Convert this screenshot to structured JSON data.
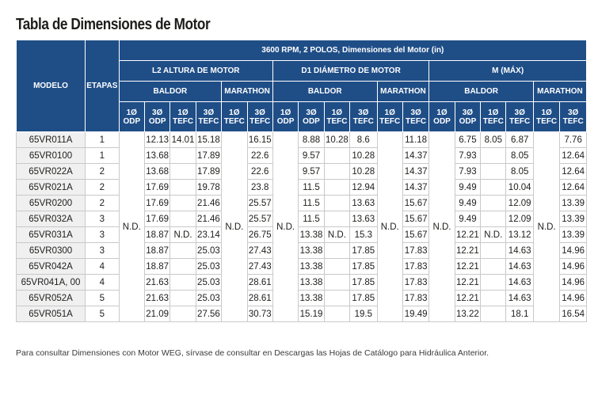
{
  "title": "Tabla de Dimensiones de Motor",
  "header": {
    "model": "MODELO",
    "stages": "ETAPAS",
    "spec": "3600 RPM, 2 POLOS, Dimensiones del Motor (in)",
    "groups": [
      "L2 ALTURA DE MOTOR",
      "D1 DIÁMETRO DE MOTOR",
      "M (MÁX)"
    ],
    "brands": [
      "BALDOR",
      "MARATHON"
    ],
    "sub": [
      "1Ø ODP",
      "3Ø ODP",
      "1Ø TEFC",
      "3Ø TEFC",
      "1Ø TEFC",
      "3Ø TEFC"
    ]
  },
  "nd_label": "N.D.",
  "rows": [
    {
      "model": "65VR011A",
      "stages": "1",
      "l2": [
        "12.13",
        "14.01",
        "15.18",
        "16.15"
      ],
      "d1": [
        "8.88",
        "10.28",
        "8.6",
        "11.18"
      ],
      "m": [
        "6.75",
        "8.05",
        "6.87",
        "7.76"
      ]
    },
    {
      "model": "65VR0100",
      "stages": "1",
      "l2": [
        "13.68",
        "",
        "17.89",
        "22.6"
      ],
      "d1": [
        "9.57",
        "",
        "10.28",
        "14.37"
      ],
      "m": [
        "7.93",
        "",
        "8.05",
        "12.64"
      ]
    },
    {
      "model": "65VR022A",
      "stages": "2",
      "l2": [
        "13.68",
        "",
        "17.89",
        "22.6"
      ],
      "d1": [
        "9.57",
        "",
        "10.28",
        "14.37"
      ],
      "m": [
        "7.93",
        "",
        "8.05",
        "12.64"
      ]
    },
    {
      "model": "65VR021A",
      "stages": "2",
      "l2": [
        "17.69",
        "",
        "19.78",
        "23.8"
      ],
      "d1": [
        "11.5",
        "",
        "12.94",
        "14.37"
      ],
      "m": [
        "9.49",
        "",
        "10.04",
        "12.64"
      ]
    },
    {
      "model": "65VR0200",
      "stages": "2",
      "l2": [
        "17.69",
        "",
        "21.46",
        "25.57"
      ],
      "d1": [
        "11.5",
        "",
        "13.63",
        "15.67"
      ],
      "m": [
        "9.49",
        "",
        "12.09",
        "13.39"
      ]
    },
    {
      "model": "65VR032A",
      "stages": "3",
      "l2": [
        "17.69",
        "",
        "21.46",
        "25.57"
      ],
      "d1": [
        "11.5",
        "",
        "13.63",
        "15.67"
      ],
      "m": [
        "9.49",
        "",
        "12.09",
        "13.39"
      ]
    },
    {
      "model": "65VR031A",
      "stages": "3",
      "l2": [
        "18.87",
        "N.D.",
        "23.14",
        "26.75"
      ],
      "d1": [
        "13.38",
        "N.D.",
        "15.3",
        "15.67"
      ],
      "m": [
        "12.21",
        "N.D.",
        "13.12",
        "13.39"
      ]
    },
    {
      "model": "65VR0300",
      "stages": "3",
      "l2": [
        "18.87",
        "",
        "25.03",
        "27.43"
      ],
      "d1": [
        "13.38",
        "",
        "17.85",
        "17.83"
      ],
      "m": [
        "12.21",
        "",
        "14.63",
        "14.96"
      ]
    },
    {
      "model": "65VR042A",
      "stages": "4",
      "l2": [
        "18.87",
        "",
        "25.03",
        "27.43"
      ],
      "d1": [
        "13.38",
        "",
        "17.85",
        "17.83"
      ],
      "m": [
        "12.21",
        "",
        "14.63",
        "14.96"
      ]
    },
    {
      "model": "65VR041A, 00",
      "stages": "4",
      "l2": [
        "21.63",
        "",
        "25.03",
        "28.61"
      ],
      "d1": [
        "13.38",
        "",
        "17.85",
        "17.83"
      ],
      "m": [
        "12.21",
        "",
        "14.63",
        "14.96"
      ]
    },
    {
      "model": "65VR052A",
      "stages": "5",
      "l2": [
        "21.63",
        "",
        "25.03",
        "28.61"
      ],
      "d1": [
        "13.38",
        "",
        "17.85",
        "17.83"
      ],
      "m": [
        "12.21",
        "",
        "14.63",
        "14.96"
      ]
    },
    {
      "model": "65VR051A",
      "stages": "5",
      "l2": [
        "21.09",
        "",
        "27.56",
        "30.73"
      ],
      "d1": [
        "15.19",
        "",
        "19.5",
        "19.49"
      ],
      "m": [
        "13.22",
        "",
        "18.1",
        "16.54"
      ]
    }
  ],
  "note": "Para consultar Dimensiones con Motor WEG, sírvase de consultar en Descargas las Hojas de Catálogo para Hidráulica Anterior."
}
